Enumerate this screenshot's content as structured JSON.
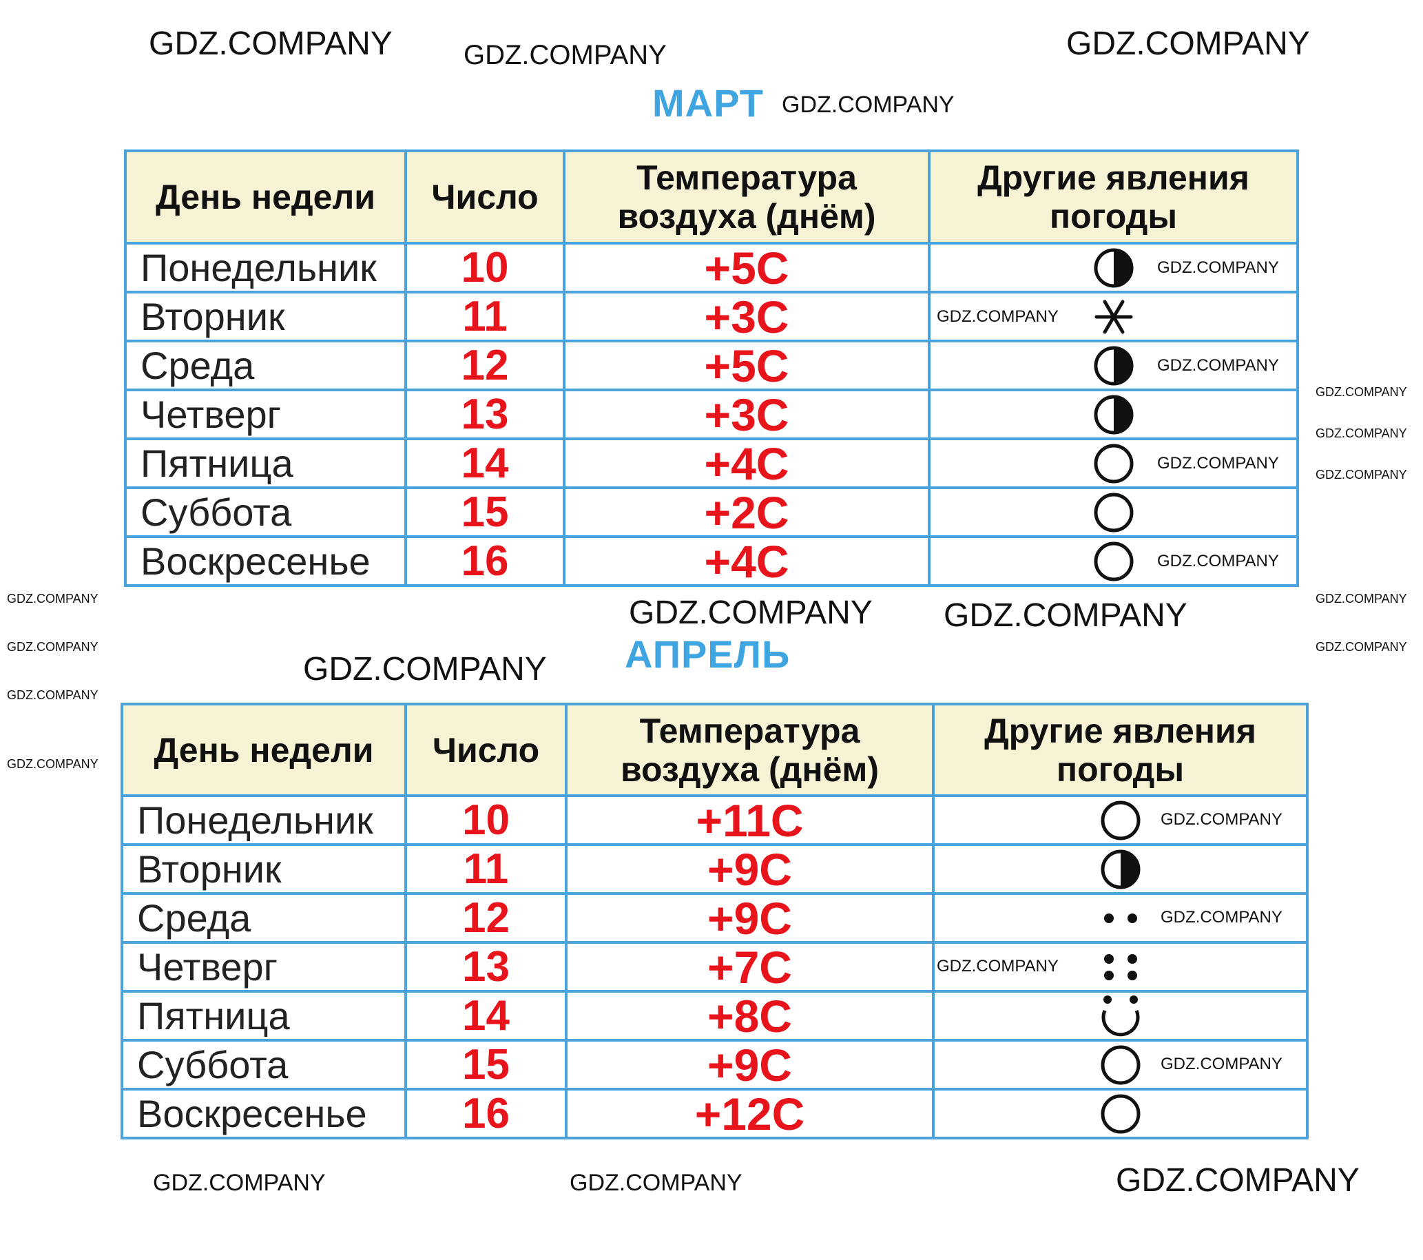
{
  "colors": {
    "accent": "#3fa5e0",
    "border": "#4aa3dd",
    "header_bg": "#f6f2d4",
    "values": "#e8141c"
  },
  "headers": {
    "day": "День недели",
    "number": "Число",
    "temperature": "Температура воздуха (днём)",
    "other": "Другие явления погоды"
  },
  "tables": [
    {
      "month": "МАРТ",
      "rows": [
        {
          "day": "Понедельник",
          "number": "10",
          "temperature": "+5С",
          "weather": "partly-cloudy-icon"
        },
        {
          "day": "Вторник",
          "number": "11",
          "temperature": "+3С",
          "weather": "snow-icon"
        },
        {
          "day": "Среда",
          "number": "12",
          "temperature": "+5С",
          "weather": "partly-cloudy-icon"
        },
        {
          "day": "Четверг",
          "number": "13",
          "temperature": "+3С",
          "weather": "partly-cloudy-icon"
        },
        {
          "day": "Пятница",
          "number": "14",
          "temperature": "+4С",
          "weather": "clear-icon"
        },
        {
          "day": "Суббота",
          "number": "15",
          "temperature": "+2С",
          "weather": "clear-icon"
        },
        {
          "day": "Воскресенье",
          "number": "16",
          "temperature": "+4С",
          "weather": "clear-icon"
        }
      ]
    },
    {
      "month": "АПРЕЛЬ",
      "rows": [
        {
          "day": "Понедельник",
          "number": "10",
          "temperature": "+11С",
          "weather": "clear-icon"
        },
        {
          "day": "Вторник",
          "number": "11",
          "temperature": "+9С",
          "weather": "partly-cloudy-icon"
        },
        {
          "day": "Среда",
          "number": "12",
          "temperature": "+9С",
          "weather": "rain-icon"
        },
        {
          "day": "Четверг",
          "number": "13",
          "temperature": "+7С",
          "weather": "heavy-rain-icon"
        },
        {
          "day": "Пятница",
          "number": "14",
          "temperature": "+8С",
          "weather": "rain-clear-icon"
        },
        {
          "day": "Суббота",
          "number": "15",
          "temperature": "+9С",
          "weather": "clear-icon"
        },
        {
          "day": "Воскресенье",
          "number": "16",
          "temperature": "+12С",
          "weather": "clear-icon"
        }
      ]
    }
  ],
  "watermark": "GDZ.COMPANY"
}
